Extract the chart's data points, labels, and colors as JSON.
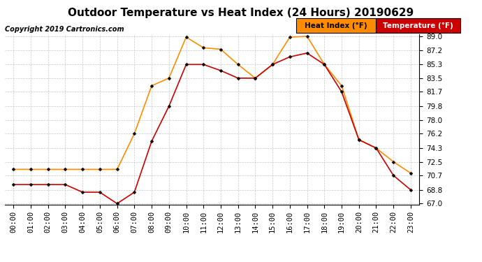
{
  "title": "Outdoor Temperature vs Heat Index (24 Hours) 20190629",
  "copyright": "Copyright 2019 Cartronics.com",
  "legend_heat_index": "Heat Index (°F)",
  "legend_temperature": "Temperature (°F)",
  "hours": [
    "00:00",
    "01:00",
    "02:00",
    "03:00",
    "04:00",
    "05:00",
    "06:00",
    "07:00",
    "08:00",
    "09:00",
    "10:00",
    "11:00",
    "12:00",
    "13:00",
    "14:00",
    "15:00",
    "16:00",
    "17:00",
    "18:00",
    "19:00",
    "20:00",
    "21:00",
    "22:00",
    "23:00"
  ],
  "heat_index": [
    71.5,
    71.5,
    71.5,
    71.5,
    71.5,
    71.5,
    71.5,
    76.2,
    82.5,
    83.5,
    88.9,
    87.5,
    87.3,
    85.3,
    83.5,
    85.3,
    88.9,
    89.0,
    85.3,
    82.5,
    75.4,
    74.3,
    72.5,
    71.0
  ],
  "temperature": [
    69.5,
    69.5,
    69.5,
    69.5,
    68.5,
    68.5,
    67.0,
    68.5,
    75.2,
    79.8,
    85.3,
    85.3,
    84.5,
    83.5,
    83.5,
    85.3,
    86.3,
    86.8,
    85.3,
    81.7,
    75.4,
    74.3,
    70.7,
    68.8
  ],
  "heat_index_color": "#FF8C00",
  "temperature_color": "#CC0000",
  "ylim_min": 67.0,
  "ylim_max": 89.0,
  "yticks": [
    67.0,
    68.8,
    70.7,
    72.5,
    74.3,
    76.2,
    78.0,
    79.8,
    81.7,
    83.5,
    85.3,
    87.2,
    89.0
  ],
  "background_color": "#FFFFFF",
  "plot_bg_color": "#FFFFFF",
  "grid_color": "#BBBBBB",
  "title_fontsize": 11,
  "legend_fontsize": 7.5,
  "copyright_fontsize": 7,
  "tick_fontsize": 7.5
}
